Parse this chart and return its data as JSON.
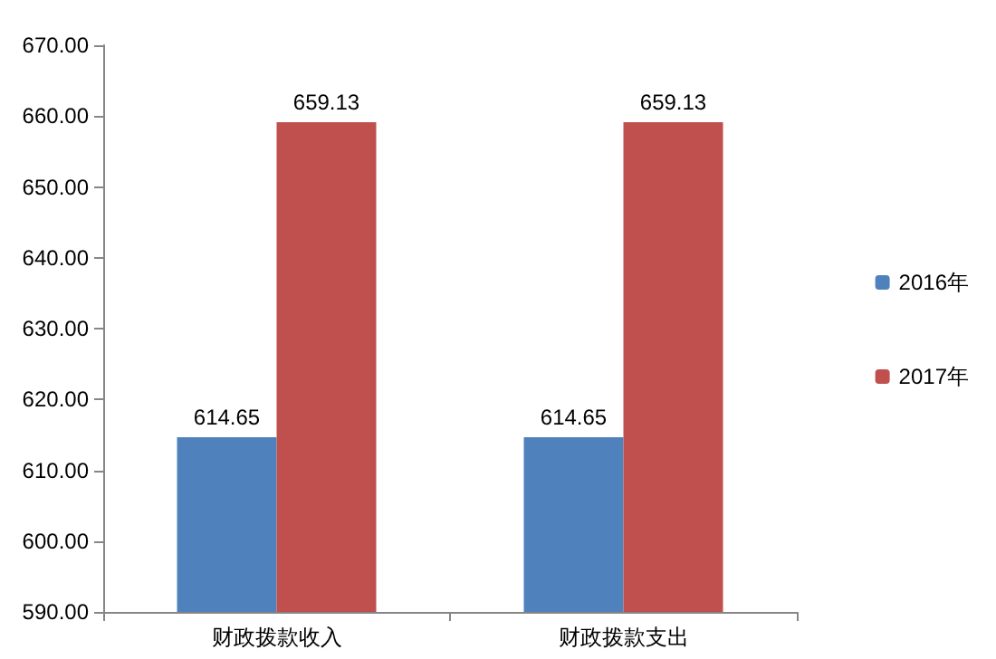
{
  "chart_data": {
    "type": "bar",
    "categories": [
      "财政拨款收入",
      "财政拨款支出"
    ],
    "series": [
      {
        "name": "2016年",
        "color": "#4f81bd",
        "values": [
          614.65,
          614.65
        ]
      },
      {
        "name": "2017年",
        "color": "#c0504d",
        "values": [
          659.13,
          659.13
        ]
      }
    ],
    "ylim": [
      590,
      670
    ],
    "yticks": [
      {
        "value": 590,
        "label": "590.00"
      },
      {
        "value": 600,
        "label": "600.00"
      },
      {
        "value": 610,
        "label": "610.00"
      },
      {
        "value": 620,
        "label": "620.00"
      },
      {
        "value": 630,
        "label": "630.00"
      },
      {
        "value": 640,
        "label": "640.00"
      },
      {
        "value": 650,
        "label": "650.00"
      },
      {
        "value": 660,
        "label": "660.00"
      },
      {
        "value": 670,
        "label": "670.00"
      }
    ],
    "data_labels": true,
    "grid": false,
    "legend": "right"
  }
}
